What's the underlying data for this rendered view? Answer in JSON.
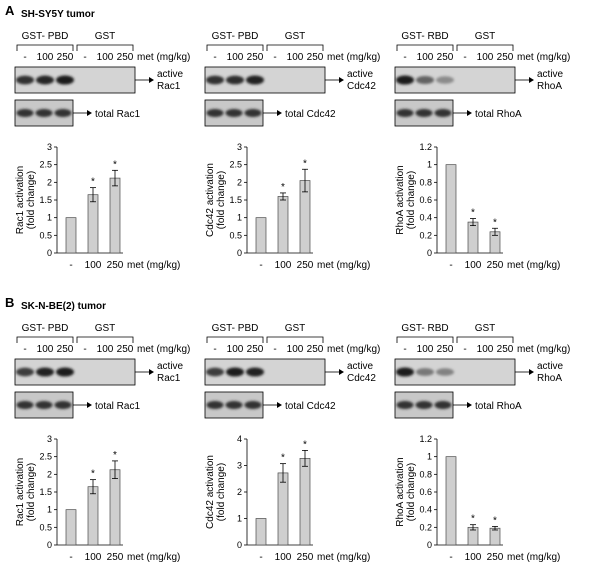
{
  "panels": [
    {
      "letter": "A",
      "title": "SH-SY5Y  tumor",
      "columns": [
        {
          "header_left": "GST- PBD",
          "header_right": "GST",
          "lanes": [
            "-",
            "100",
            "250",
            "-",
            "100",
            "250"
          ],
          "dose_label": "met (mg/kg)",
          "active_label": [
            "active",
            "Rac1"
          ],
          "total_label": "total Rac1",
          "active_intensity": [
            0.8,
            0.85,
            0.9,
            0.02,
            0.02,
            0.02
          ],
          "chart_data": {
            "type": "bar",
            "categories": [
              "-",
              "100",
              "250"
            ],
            "values": [
              1.0,
              1.65,
              2.12
            ],
            "errors": [
              0.0,
              0.2,
              0.22
            ],
            "significant": [
              false,
              true,
              true
            ],
            "ylabel": [
              "Rac1 activation",
              "(fold change)"
            ],
            "ylim": [
              0,
              3
            ],
            "yticks": [
              "0",
              "0.5",
              "1",
              "1.5",
              "2",
              "2.5",
              "3"
            ],
            "xlabel": "met (mg/kg)",
            "significance_marker": "*"
          }
        },
        {
          "header_left": "GST- PBD",
          "header_right": "GST",
          "lanes": [
            "-",
            "100",
            "250",
            "-",
            "100",
            "250"
          ],
          "dose_label": "met (mg/kg)",
          "active_label": [
            "active",
            "Cdc42"
          ],
          "total_label": "total Cdc42",
          "active_intensity": [
            0.8,
            0.82,
            0.88,
            0.02,
            0.02,
            0.02
          ],
          "chart_data": {
            "type": "bar",
            "categories": [
              "-",
              "100",
              "250"
            ],
            "values": [
              1.0,
              1.6,
              2.05
            ],
            "errors": [
              0.0,
              0.1,
              0.32
            ],
            "significant": [
              false,
              true,
              true
            ],
            "ylabel": [
              "Cdc42 activation",
              "(fold change)"
            ],
            "ylim": [
              0,
              3
            ],
            "yticks": [
              "0",
              "0.5",
              "1",
              "1.5",
              "2",
              "2.5",
              "3"
            ],
            "xlabel": "met (mg/kg)",
            "significance_marker": "*"
          }
        },
        {
          "header_left": "GST- RBD",
          "header_right": "GST",
          "lanes": [
            "-",
            "100",
            "250",
            "-",
            "100",
            "250"
          ],
          "dose_label": "met (mg/kg)",
          "active_label": [
            "active",
            "RhoA"
          ],
          "total_label": "total RhoA",
          "active_intensity": [
            0.9,
            0.55,
            0.35,
            0.02,
            0.02,
            0.02
          ],
          "chart_data": {
            "type": "bar",
            "categories": [
              "-",
              "100",
              "250"
            ],
            "values": [
              1.0,
              0.35,
              0.24
            ],
            "errors": [
              0.0,
              0.04,
              0.04
            ],
            "significant": [
              false,
              true,
              true
            ],
            "ylabel": [
              "RhoA activation",
              "(fold change)"
            ],
            "ylim": [
              0,
              1.2
            ],
            "yticks": [
              "0",
              "0.2",
              "0.4",
              "0.6",
              "0.8",
              "1",
              "1.2"
            ],
            "xlabel": "met (mg/kg)",
            "significance_marker": "*"
          }
        }
      ]
    },
    {
      "letter": "B",
      "title": "SK-N-BE(2) tumor",
      "columns": [
        {
          "header_left": "GST- PBD",
          "header_right": "GST",
          "lanes": [
            "-",
            "100",
            "250",
            "-",
            "100",
            "250"
          ],
          "dose_label": "met (mg/kg)",
          "active_label": [
            "active",
            "Rac1"
          ],
          "total_label": "total Rac1",
          "active_intensity": [
            0.75,
            0.88,
            0.9,
            0.02,
            0.02,
            0.02
          ],
          "chart_data": {
            "type": "bar",
            "categories": [
              "-",
              "100",
              "250"
            ],
            "values": [
              1.0,
              1.65,
              2.13
            ],
            "errors": [
              0.0,
              0.2,
              0.25
            ],
            "significant": [
              false,
              true,
              true
            ],
            "ylabel": [
              "Rac1 activation",
              "(fold change)"
            ],
            "ylim": [
              0,
              3
            ],
            "yticks": [
              "0",
              "0.5",
              "1",
              "1.5",
              "2",
              "2.5",
              "3"
            ],
            "xlabel": "met (mg/kg)",
            "significance_marker": "*"
          }
        },
        {
          "header_left": "GST- PBD",
          "header_right": "GST",
          "lanes": [
            "-",
            "100",
            "250",
            "-",
            "100",
            "250"
          ],
          "dose_label": "met (mg/kg)",
          "active_label": [
            "active",
            "Cdc42"
          ],
          "total_label": "total Cdc42",
          "active_intensity": [
            0.75,
            0.9,
            0.88,
            0.02,
            0.02,
            0.02
          ],
          "chart_data": {
            "type": "bar",
            "categories": [
              "-",
              "100",
              "250"
            ],
            "values": [
              1.0,
              2.72,
              3.27
            ],
            "errors": [
              0.0,
              0.35,
              0.3
            ],
            "significant": [
              false,
              true,
              true
            ],
            "ylabel": [
              "Cdc42 activation",
              "(fold change)"
            ],
            "ylim": [
              0,
              4
            ],
            "yticks": [
              "0",
              "1",
              "2",
              "3",
              "4"
            ],
            "xlabel": "met (mg/kg)",
            "significance_marker": "*"
          }
        },
        {
          "header_left": "GST- RBD",
          "header_right": "GST",
          "lanes": [
            "-",
            "100",
            "250",
            "-",
            "100",
            "250"
          ],
          "dose_label": "met (mg/kg)",
          "active_label": [
            "active",
            "RhoA"
          ],
          "total_label": "total RhoA",
          "active_intensity": [
            0.9,
            0.45,
            0.4,
            0.02,
            0.02,
            0.02
          ],
          "chart_data": {
            "type": "bar",
            "categories": [
              "-",
              "100",
              "250"
            ],
            "values": [
              1.0,
              0.2,
              0.19
            ],
            "errors": [
              0.0,
              0.03,
              0.02
            ],
            "significant": [
              false,
              true,
              true
            ],
            "ylabel": [
              "RhoA activation",
              "(fold change)"
            ],
            "ylim": [
              0,
              1.2
            ],
            "yticks": [
              "0",
              "0.2",
              "0.4",
              "0.6",
              "0.8",
              "1",
              "1.2"
            ],
            "xlabel": "met (mg/kg)",
            "significance_marker": "*"
          }
        }
      ]
    }
  ]
}
